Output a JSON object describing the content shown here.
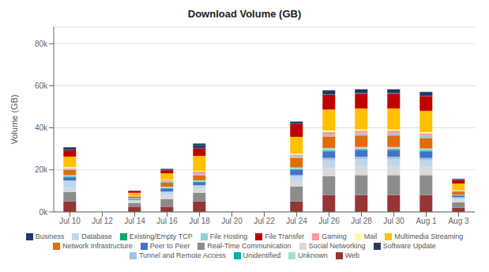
{
  "chart_data": {
    "type": "bar",
    "title": "Download Volume (GB)",
    "ylabel": "Volume (GB)",
    "stacked": true,
    "grid": true,
    "legend": "bottom",
    "categories": [
      "Jul 10",
      "Jul 12",
      "Jul 14",
      "Jul 16",
      "Jul 18",
      "Jul 20",
      "Jul 22",
      "Jul 24",
      "Jul 26",
      "Jul 28",
      "Jul 30",
      "Aug 1",
      "Aug 3"
    ],
    "series": [
      {
        "name": "Web",
        "color": "#943634",
        "values": [
          5000,
          0,
          2500,
          2500,
          5000,
          0,
          0,
          5000,
          8000,
          8000,
          8000,
          8000,
          2000
        ]
      },
      {
        "name": "Real-Time Communication",
        "color": "#8C8C8C",
        "values": [
          4500,
          0,
          1800,
          3500,
          4000,
          0,
          0,
          7000,
          9000,
          9500,
          9500,
          9500,
          2500
        ]
      },
      {
        "name": "Social Networking",
        "color": "#D9D9D9",
        "values": [
          2000,
          0,
          800,
          2000,
          2000,
          0,
          0,
          3000,
          4000,
          4000,
          4000,
          4000,
          1200
        ]
      },
      {
        "name": "Database",
        "color": "#BDD7EE",
        "values": [
          3000,
          0,
          500,
          1500,
          1500,
          0,
          0,
          2000,
          3500,
          3500,
          3500,
          3000,
          900
        ]
      },
      {
        "name": "Tunnel and Remote Access",
        "color": "#9DC3E6",
        "values": [
          500,
          0,
          100,
          200,
          200,
          0,
          0,
          500,
          1200,
          1200,
          1200,
          1200,
          400
        ]
      },
      {
        "name": "Peer to Peer",
        "color": "#4472C4",
        "values": [
          1500,
          0,
          500,
          1500,
          1500,
          0,
          0,
          2500,
          3000,
          3000,
          3000,
          3000,
          800
        ]
      },
      {
        "name": "Unidentified",
        "color": "#00B0A0",
        "values": [
          300,
          0,
          50,
          200,
          300,
          0,
          0,
          400,
          500,
          500,
          500,
          500,
          100
        ]
      },
      {
        "name": "Unknown",
        "color": "#A0E0D0",
        "values": [
          700,
          0,
          200,
          500,
          500,
          0,
          0,
          800,
          1200,
          1200,
          1200,
          1000,
          300
        ]
      },
      {
        "name": "Network Infrastructure",
        "color": "#E26B0A",
        "values": [
          2500,
          0,
          900,
          2000,
          2500,
          0,
          0,
          4500,
          5500,
          5500,
          5500,
          5000,
          1500
        ]
      },
      {
        "name": "File Hosting",
        "color": "#92CDDC",
        "values": [
          500,
          0,
          100,
          500,
          500,
          0,
          0,
          800,
          1000,
          1000,
          1000,
          1000,
          300
        ]
      },
      {
        "name": "Gaming",
        "color": "#FF9999",
        "values": [
          400,
          0,
          100,
          600,
          1200,
          0,
          0,
          800,
          1200,
          1200,
          1200,
          1200,
          300
        ]
      },
      {
        "name": "Mail",
        "color": "#FFFF99",
        "values": [
          400,
          0,
          100,
          300,
          400,
          0,
          0,
          400,
          600,
          600,
          600,
          600,
          150
        ]
      },
      {
        "name": "Multimedia Streaming",
        "color": "#FFC000",
        "values": [
          5000,
          0,
          1500,
          3000,
          7000,
          0,
          0,
          8000,
          10000,
          10000,
          10000,
          10000,
          3000
        ]
      },
      {
        "name": "File Transfer",
        "color": "#C00000",
        "values": [
          3000,
          0,
          800,
          1500,
          3500,
          0,
          0,
          6000,
          7000,
          7000,
          7000,
          7000,
          1800
        ]
      },
      {
        "name": "Existing/Empty TCP",
        "color": "#00AA6C",
        "values": [
          50,
          0,
          20,
          50,
          50,
          0,
          0,
          50,
          100,
          100,
          100,
          100,
          30
        ]
      },
      {
        "name": "Software Update",
        "color": "#243F60",
        "values": [
          200,
          0,
          50,
          200,
          1500,
          0,
          0,
          200,
          200,
          200,
          200,
          200,
          50
        ]
      },
      {
        "name": "Business",
        "color": "#1F3864",
        "values": [
          1200,
          0,
          150,
          400,
          900,
          0,
          0,
          1000,
          1800,
          1800,
          1800,
          1800,
          400
        ]
      }
    ],
    "ylim": [
      0,
      88000
    ],
    "yticks": [
      {
        "value": 0,
        "label": "0k"
      },
      {
        "value": 20000,
        "label": "20k"
      },
      {
        "value": 40000,
        "label": "40k"
      },
      {
        "value": 60000,
        "label": "60k"
      },
      {
        "value": 80000,
        "label": "80k"
      }
    ]
  }
}
